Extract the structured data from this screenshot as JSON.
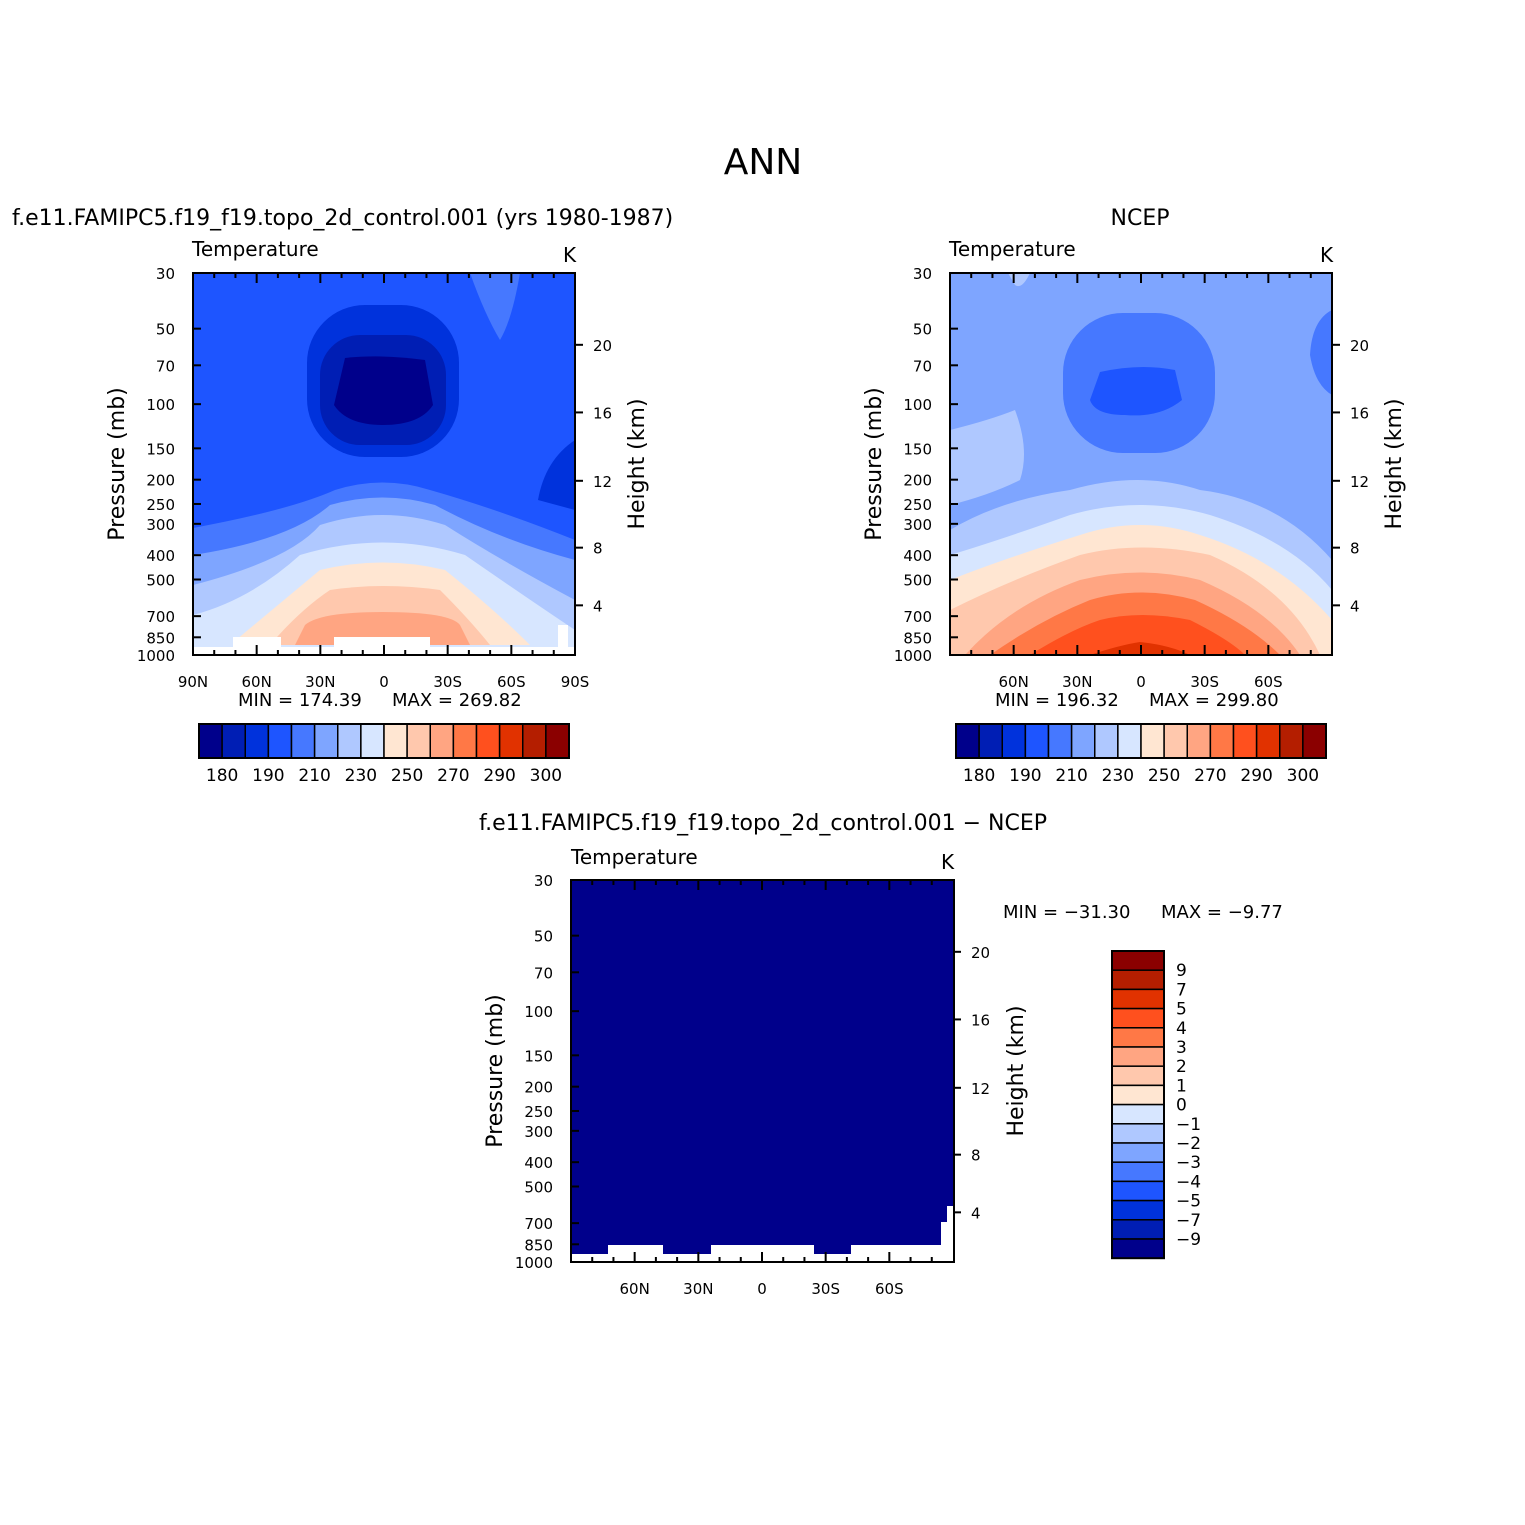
{
  "title": "ANN",
  "variable": "Temperature",
  "units": "K",
  "ylabel_left": "Pressure  (mb)",
  "ylabel_right": "Height  (km)",
  "pressure_ticks": [
    "30",
    "50",
    "70",
    "100",
    "150",
    "200",
    "250",
    "300",
    "400",
    "500",
    "700",
    "850",
    "1000"
  ],
  "height_ticks": [
    "20",
    "16",
    "12",
    "8",
    "4"
  ],
  "colors": {
    "abs_levels": [
      "#00008b",
      "#001eb4",
      "#0032dc",
      "#1e55ff",
      "#4678ff",
      "#7ea5ff",
      "#afc8ff",
      "#d7e6ff",
      "#ffe6d2",
      "#ffc8ad",
      "#ffa582",
      "#ff7846",
      "#ff501e",
      "#e13200",
      "#b41e00",
      "#8b0000"
    ],
    "diff_levels": [
      "#8b0000",
      "#b41e00",
      "#e13200",
      "#ff501e",
      "#ff7846",
      "#ffa582",
      "#ffc8ad",
      "#ffe6d2",
      "#d7e6ff",
      "#afc8ff",
      "#7ea5ff",
      "#4678ff",
      "#1e55ff",
      "#0032dc",
      "#001eb4",
      "#00008b"
    ]
  },
  "chart_data": [
    {
      "type": "heatmap",
      "panel_title": "f.e11.FAMIPC5.f19_f19.topo_2d_control.001 (yrs 1980-1987)",
      "x_tick_labels": [
        "90N",
        "60N",
        "30N",
        "0",
        "30S",
        "60S",
        "90S"
      ],
      "xlim": [
        90,
        -90
      ],
      "ylim_mb": [
        1000,
        30
      ],
      "log_pressure": true,
      "min_label": "MIN  =  174.39",
      "max_label": "MAX  =  269.82",
      "min": 174.39,
      "max": 269.82,
      "colorbar_labels": [
        "180",
        "190",
        "210",
        "230",
        "250",
        "270",
        "290",
        "300"
      ]
    },
    {
      "type": "heatmap",
      "panel_title": "NCEP",
      "x_tick_labels": [
        "60N",
        "30N",
        "0",
        "30S",
        "60S"
      ],
      "xlim": [
        90,
        -90
      ],
      "ylim_mb": [
        1000,
        30
      ],
      "log_pressure": true,
      "min_label": "MIN  =  196.32",
      "max_label": "MAX  =  299.80",
      "min": 196.32,
      "max": 299.8,
      "colorbar_labels": [
        "180",
        "190",
        "210",
        "230",
        "250",
        "270",
        "290",
        "300"
      ]
    },
    {
      "type": "heatmap",
      "panel_title": "f.e11.FAMIPC5.f19_f19.topo_2d_control.001  −  NCEP",
      "x_tick_labels": [
        "60N",
        "30N",
        "0",
        "30S",
        "60S"
      ],
      "xlim": [
        90,
        -90
      ],
      "ylim_mb": [
        1000,
        30
      ],
      "log_pressure": true,
      "min_label": "MIN  =  −31.30",
      "max_label": "MAX  =   −9.77",
      "min": -31.3,
      "max": -9.77,
      "colorbar_labels": [
        "9",
        "7",
        "5",
        "4",
        "3",
        "2",
        "1",
        "0",
        "−1",
        "−2",
        "−3",
        "−4",
        "−5",
        "−7",
        "−9"
      ]
    }
  ]
}
